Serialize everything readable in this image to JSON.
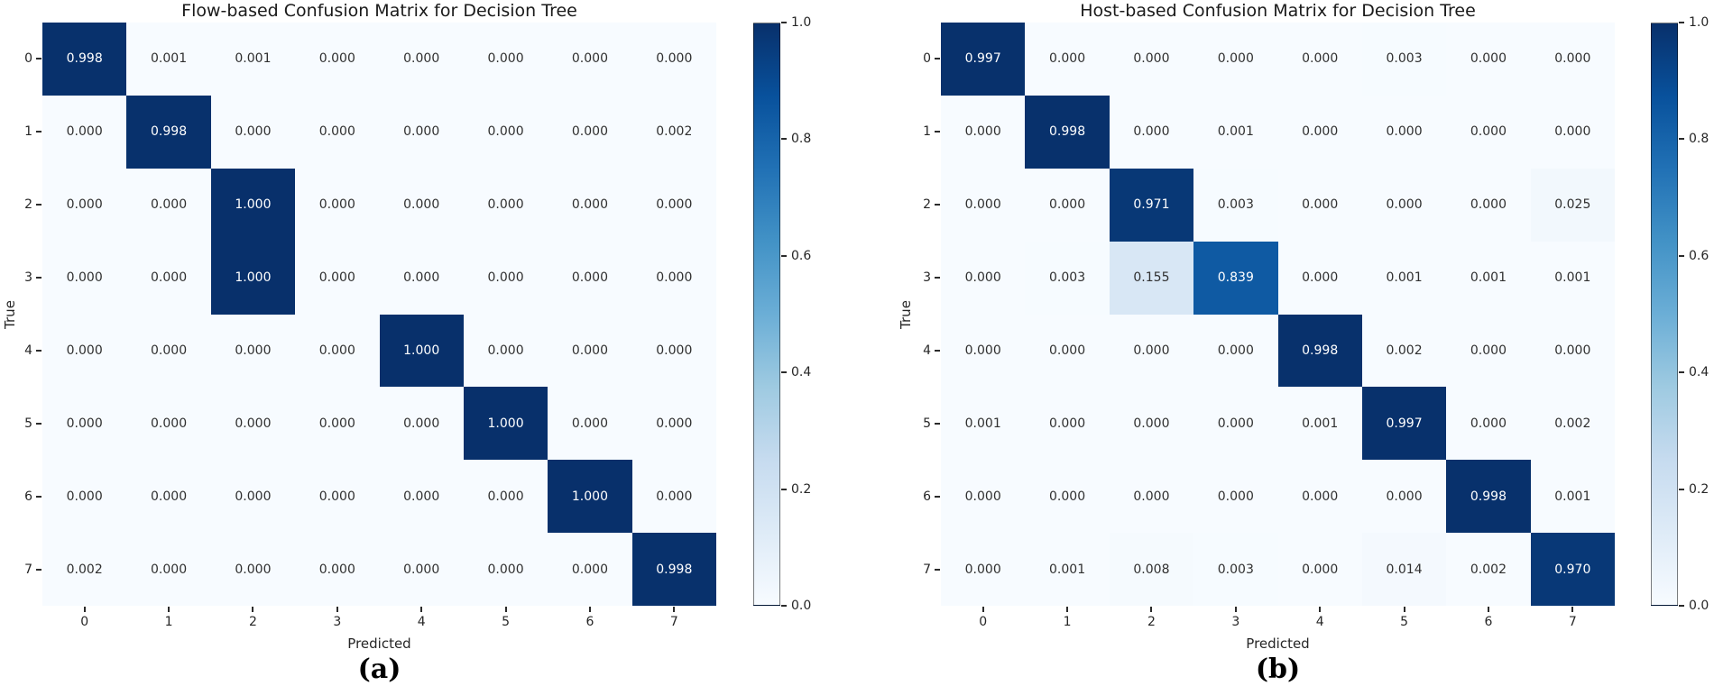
{
  "figure": {
    "background": "#ffffff"
  },
  "colors": {
    "colormap_blues_stops": [
      "#f7fbff",
      "#deebf7",
      "#c6dbef",
      "#9ecae1",
      "#6baed6",
      "#4292c6",
      "#2171b5",
      "#08519c",
      "#08306b"
    ],
    "annotation_dark_text": "#303030",
    "annotation_light_text": "#ffffff",
    "tick_text": "#262626",
    "title_text": "#1a1a1a"
  },
  "chart_data": [
    {
      "type": "heatmap",
      "title": "Flow-based Confusion Matrix for Decision Tree",
      "xlabel": "Predicted",
      "ylabel": "True",
      "caption": "(a)",
      "colormap": "Blues",
      "vmin": 0.0,
      "vmax": 1.0,
      "grid": false,
      "x_ticklabels": [
        "0",
        "1",
        "2",
        "3",
        "4",
        "5",
        "6",
        "7"
      ],
      "y_ticklabels": [
        "0",
        "1",
        "2",
        "3",
        "4",
        "5",
        "6",
        "7"
      ],
      "colorbar_ticklabels": [
        "1.0",
        "0.8",
        "0.6",
        "0.4",
        "0.2",
        "0.0"
      ],
      "values": [
        [
          0.998,
          0.001,
          0.001,
          0.0,
          0.0,
          0.0,
          0.0,
          0.0
        ],
        [
          0.0,
          0.998,
          0.0,
          0.0,
          0.0,
          0.0,
          0.0,
          0.002
        ],
        [
          0.0,
          0.0,
          1.0,
          0.0,
          0.0,
          0.0,
          0.0,
          0.0
        ],
        [
          0.0,
          0.0,
          1.0,
          0.0,
          0.0,
          0.0,
          0.0,
          0.0
        ],
        [
          0.0,
          0.0,
          0.0,
          0.0,
          1.0,
          0.0,
          0.0,
          0.0
        ],
        [
          0.0,
          0.0,
          0.0,
          0.0,
          0.0,
          1.0,
          0.0,
          0.0
        ],
        [
          0.0,
          0.0,
          0.0,
          0.0,
          0.0,
          0.0,
          1.0,
          0.0
        ],
        [
          0.002,
          0.0,
          0.0,
          0.0,
          0.0,
          0.0,
          0.0,
          0.998
        ]
      ]
    },
    {
      "type": "heatmap",
      "title": "Host-based Confusion Matrix for Decision Tree",
      "xlabel": "Predicted",
      "ylabel": "True",
      "caption": "(b)",
      "colormap": "Blues",
      "vmin": 0.0,
      "vmax": 1.0,
      "grid": false,
      "x_ticklabels": [
        "0",
        "1",
        "2",
        "3",
        "4",
        "5",
        "6",
        "7"
      ],
      "y_ticklabels": [
        "0",
        "1",
        "2",
        "3",
        "4",
        "5",
        "6",
        "7"
      ],
      "colorbar_ticklabels": [
        "1.0",
        "0.8",
        "0.6",
        "0.4",
        "0.2",
        "0.0"
      ],
      "values": [
        [
          0.997,
          0.0,
          0.0,
          0.0,
          0.0,
          0.003,
          0.0,
          0.0
        ],
        [
          0.0,
          0.998,
          0.0,
          0.001,
          0.0,
          0.0,
          0.0,
          0.0
        ],
        [
          0.0,
          0.0,
          0.971,
          0.003,
          0.0,
          0.0,
          0.0,
          0.025
        ],
        [
          0.0,
          0.003,
          0.155,
          0.839,
          0.0,
          0.001,
          0.001,
          0.001
        ],
        [
          0.0,
          0.0,
          0.0,
          0.0,
          0.998,
          0.002,
          0.0,
          0.0
        ],
        [
          0.001,
          0.0,
          0.0,
          0.0,
          0.001,
          0.997,
          0.0,
          0.002
        ],
        [
          0.0,
          0.0,
          0.0,
          0.0,
          0.0,
          0.0,
          0.998,
          0.001
        ],
        [
          0.0,
          0.001,
          0.008,
          0.003,
          0.0,
          0.014,
          0.002,
          0.97
        ]
      ]
    }
  ]
}
